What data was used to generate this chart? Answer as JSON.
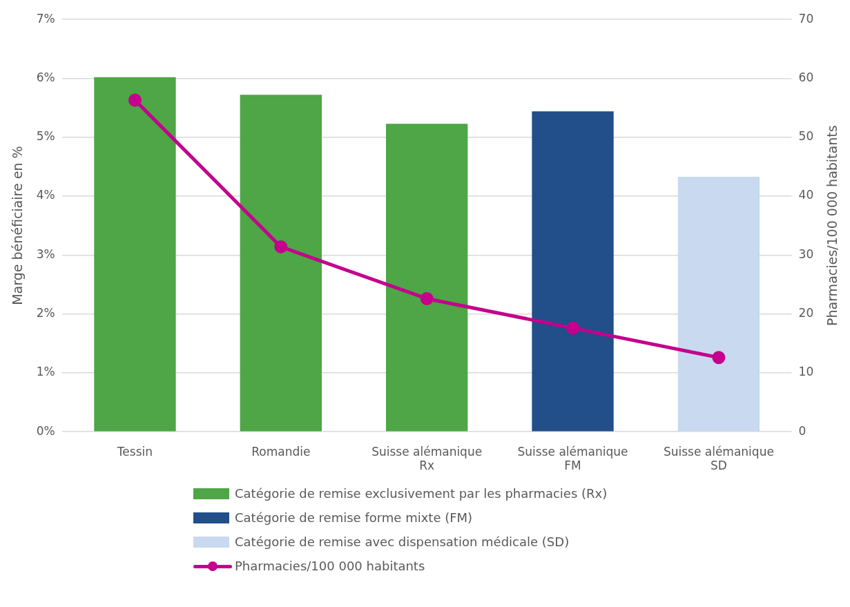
{
  "chart_data": {
    "type": "bar",
    "ylabel": "Marge bénéficiaire en %",
    "y2label": "Pharmacies/100 000 habitants",
    "categories": [
      "Tessin",
      "Romandie",
      "Suisse alémanique Rx",
      "Suisse alémanique FM",
      "Suisse alémanique SD"
    ],
    "series": [
      {
        "name": "Catégorie de remise exclusivement par les pharmacies (Rx)",
        "color": "#4ea646",
        "values": [
          6.02,
          5.72,
          5.23,
          null,
          null
        ]
      },
      {
        "name": "Catégorie de remise forme mixte (FM)",
        "color": "#224e8a",
        "values": [
          null,
          null,
          null,
          5.44,
          null
        ]
      },
      {
        "name": "Catégorie de remise avec dispensation médicale (SD)",
        "color": "#c8d9f0",
        "values": [
          null,
          null,
          null,
          null,
          4.33
        ]
      },
      {
        "name": "Pharmacies/100 000 habitants",
        "type": "line",
        "axis": "y2",
        "color": "#c4008c",
        "marker": "circle",
        "values": [
          56.3,
          31.4,
          22.6,
          17.6,
          12.6
        ]
      }
    ],
    "ylim": [
      0,
      7
    ],
    "yticks": [
      {
        "value": 0,
        "label": "0%"
      },
      {
        "value": 1,
        "label": "1%"
      },
      {
        "value": 2,
        "label": "2%"
      },
      {
        "value": 3,
        "label": "3%"
      },
      {
        "value": 4,
        "label": "4%"
      },
      {
        "value": 5,
        "label": "5%"
      },
      {
        "value": 6,
        "label": "6%"
      },
      {
        "value": 7,
        "label": "7%"
      }
    ],
    "y2lim": [
      0,
      70
    ],
    "y2ticks": [
      0,
      10,
      20,
      30,
      40,
      50,
      60,
      70
    ],
    "grid": "y",
    "legend": "bottom"
  }
}
